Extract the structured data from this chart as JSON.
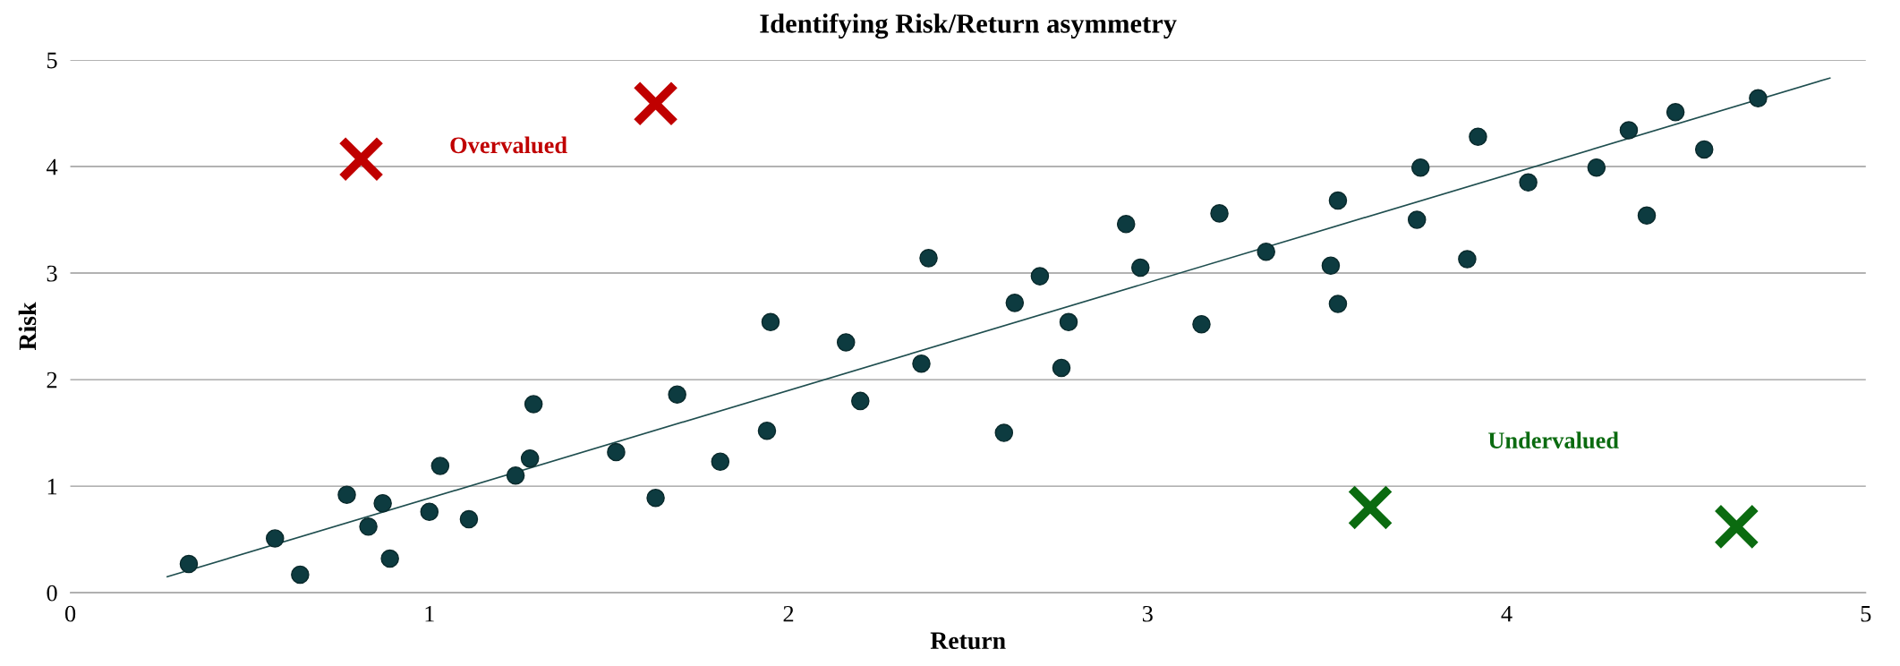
{
  "chart_data": {
    "type": "scatter",
    "title": "Identifying Risk/Return asymmetry",
    "xlabel": "Return",
    "ylabel": "Risk",
    "xlim": [
      0,
      5
    ],
    "ylim": [
      0,
      5
    ],
    "xticks": [
      0,
      1,
      2,
      3,
      4,
      5
    ],
    "yticks": [
      0,
      1,
      2,
      3,
      4,
      5
    ],
    "grid": "y",
    "series": [
      {
        "color": "#0d3b40",
        "marker": "circle",
        "x": [
          0.33,
          0.57,
          0.64,
          0.77,
          0.83,
          0.87,
          0.89,
          1.0,
          1.03,
          1.11,
          1.24,
          1.28,
          1.29,
          1.52,
          1.63,
          1.69,
          1.81,
          1.94,
          1.95,
          2.16,
          2.2,
          2.37,
          2.39,
          2.6,
          2.63,
          2.7,
          2.76,
          2.78,
          2.94,
          2.98,
          3.15,
          3.2,
          3.33,
          3.51,
          3.53,
          3.53,
          3.75,
          3.76,
          3.89,
          3.92,
          4.06,
          4.25,
          4.34,
          4.39,
          4.47,
          4.55,
          4.7
        ],
        "values": [
          0.27,
          0.51,
          0.17,
          0.92,
          0.62,
          0.84,
          0.32,
          0.76,
          1.19,
          0.69,
          1.1,
          1.26,
          1.77,
          1.32,
          0.89,
          1.86,
          1.23,
          1.52,
          2.54,
          2.35,
          1.8,
          2.15,
          3.14,
          1.5,
          2.72,
          2.97,
          2.11,
          2.54,
          3.46,
          3.05,
          2.52,
          3.56,
          3.2,
          3.07,
          3.68,
          2.71,
          3.5,
          3.99,
          3.13,
          4.28,
          3.85,
          3.99,
          4.34,
          3.54,
          4.51,
          4.16,
          4.64
        ]
      },
      {
        "name": "Overvalued",
        "color": "#c00000",
        "marker": "cross",
        "x": [
          0.81,
          1.63
        ],
        "values": [
          4.07,
          4.59
        ]
      },
      {
        "name": "Undervalued",
        "color": "#0b6b10",
        "marker": "cross",
        "x": [
          3.62,
          4.64
        ],
        "values": [
          0.8,
          0.62
        ]
      },
      {
        "type": "line",
        "color": "#1f4e4f",
        "marker": "none",
        "x": [
          0.27,
          4.9
        ],
        "values": [
          0.15,
          4.83
        ]
      }
    ]
  }
}
